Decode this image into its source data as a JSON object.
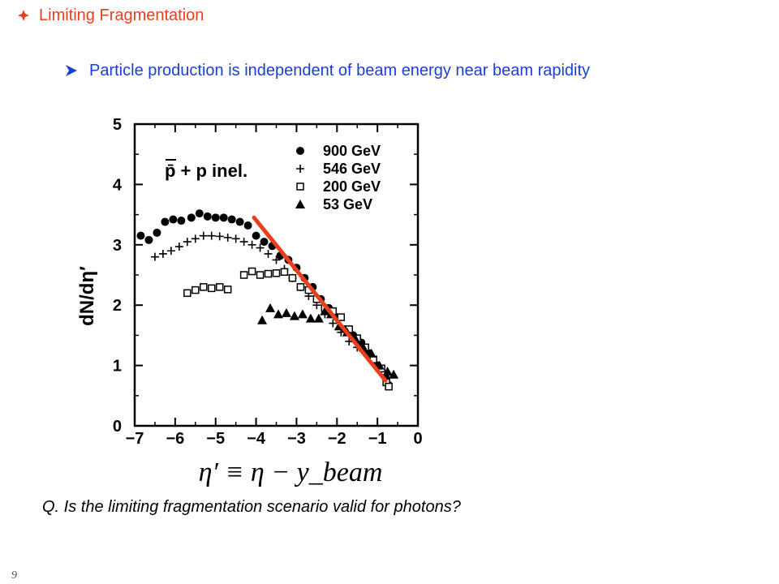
{
  "slide": {
    "title": "Limiting Fragmentation",
    "bullet": "Particle production is independent of beam energy near beam rapidity",
    "question": "Q. Is the limiting fragmentation scenario valid for photons?",
    "page_number": "9",
    "title_color": "#e8401c",
    "bullet_color": "#1a3fd6",
    "bullet_icon": "diamond-icon",
    "sub_bullet_icon": "arrow-icon"
  },
  "chart_data": {
    "type": "scatter",
    "annotation": "p̄ + p inel.",
    "xlabel": "η′ ≡ η − y_beam",
    "ylabel": "dN/dη′",
    "xlim": [
      -7,
      0
    ],
    "ylim": [
      0,
      5
    ],
    "x_ticks": [
      -7,
      -6,
      -5,
      -4,
      -3,
      -2,
      -1,
      0
    ],
    "y_ticks": [
      0,
      1,
      2,
      3,
      4,
      5
    ],
    "legend_position": "top-right",
    "series": [
      {
        "name": "900 GeV",
        "marker": "filled-circle",
        "points": [
          [
            -6.85,
            3.15
          ],
          [
            -6.65,
            3.08
          ],
          [
            -6.45,
            3.2
          ],
          [
            -6.25,
            3.38
          ],
          [
            -6.05,
            3.42
          ],
          [
            -5.85,
            3.4
          ],
          [
            -5.6,
            3.45
          ],
          [
            -5.4,
            3.52
          ],
          [
            -5.2,
            3.47
          ],
          [
            -5.0,
            3.45
          ],
          [
            -4.8,
            3.45
          ],
          [
            -4.6,
            3.42
          ],
          [
            -4.4,
            3.38
          ],
          [
            -4.2,
            3.32
          ],
          [
            -4.0,
            3.15
          ],
          [
            -3.8,
            3.05
          ],
          [
            -3.6,
            2.98
          ],
          [
            -3.4,
            2.82
          ],
          [
            -3.2,
            2.75
          ],
          [
            -3.0,
            2.62
          ],
          [
            -2.8,
            2.45
          ],
          [
            -2.6,
            2.3
          ],
          [
            -2.4,
            2.1
          ],
          [
            -2.2,
            1.95
          ],
          [
            -2.0,
            1.8
          ],
          [
            -1.8,
            1.6
          ],
          [
            -1.6,
            1.5
          ],
          [
            -1.4,
            1.38
          ],
          [
            -1.2,
            1.2
          ],
          [
            -1.0,
            1.0
          ],
          [
            -0.8,
            0.8
          ]
        ]
      },
      {
        "name": "546 GeV",
        "marker": "plus",
        "points": [
          [
            -6.5,
            2.8
          ],
          [
            -6.3,
            2.85
          ],
          [
            -6.1,
            2.9
          ],
          [
            -5.9,
            2.97
          ],
          [
            -5.7,
            3.05
          ],
          [
            -5.5,
            3.1
          ],
          [
            -5.3,
            3.15
          ],
          [
            -5.1,
            3.15
          ],
          [
            -4.9,
            3.14
          ],
          [
            -4.7,
            3.12
          ],
          [
            -4.5,
            3.1
          ],
          [
            -4.3,
            3.05
          ],
          [
            -4.1,
            3.0
          ],
          [
            -3.9,
            2.95
          ],
          [
            -3.7,
            2.85
          ],
          [
            -3.5,
            2.75
          ],
          [
            -3.3,
            2.6
          ],
          [
            -3.1,
            2.45
          ],
          [
            -2.9,
            2.3
          ],
          [
            -2.7,
            2.15
          ],
          [
            -2.5,
            2.0
          ],
          [
            -2.3,
            1.85
          ],
          [
            -2.1,
            1.7
          ],
          [
            -1.9,
            1.55
          ],
          [
            -1.7,
            1.4
          ],
          [
            -1.5,
            1.3
          ],
          [
            -1.3,
            1.22
          ],
          [
            -1.1,
            1.05
          ],
          [
            -0.9,
            0.9
          ],
          [
            -0.75,
            0.72
          ]
        ]
      },
      {
        "name": "200 GeV",
        "marker": "open-square",
        "points": [
          [
            -5.7,
            2.2
          ],
          [
            -5.5,
            2.25
          ],
          [
            -5.3,
            2.3
          ],
          [
            -5.1,
            2.28
          ],
          [
            -4.9,
            2.3
          ],
          [
            -4.7,
            2.26
          ],
          [
            -4.3,
            2.5
          ],
          [
            -4.1,
            2.56
          ],
          [
            -3.9,
            2.5
          ],
          [
            -3.7,
            2.52
          ],
          [
            -3.5,
            2.53
          ],
          [
            -3.3,
            2.55
          ],
          [
            -3.1,
            2.45
          ],
          [
            -2.9,
            2.3
          ],
          [
            -2.7,
            2.25
          ],
          [
            -2.5,
            2.1
          ],
          [
            -2.3,
            1.95
          ],
          [
            -2.1,
            1.9
          ],
          [
            -1.9,
            1.8
          ],
          [
            -1.7,
            1.6
          ],
          [
            -1.5,
            1.45
          ],
          [
            -1.3,
            1.3
          ],
          [
            -1.1,
            1.1
          ],
          [
            -0.9,
            0.95
          ],
          [
            -0.78,
            0.72
          ],
          [
            -0.72,
            0.65
          ]
        ]
      },
      {
        "name": "53 GeV",
        "marker": "filled-triangle",
        "points": [
          [
            -3.85,
            1.75
          ],
          [
            -3.65,
            1.95
          ],
          [
            -3.45,
            1.85
          ],
          [
            -3.25,
            1.87
          ],
          [
            -3.05,
            1.82
          ],
          [
            -2.85,
            1.85
          ],
          [
            -2.65,
            1.78
          ],
          [
            -2.45,
            1.78
          ],
          [
            -2.3,
            1.9
          ],
          [
            -2.15,
            1.85
          ],
          [
            -1.95,
            1.65
          ],
          [
            -1.75,
            1.55
          ],
          [
            -1.55,
            1.45
          ],
          [
            -1.35,
            1.3
          ],
          [
            -1.15,
            1.2
          ],
          [
            -0.95,
            1.0
          ],
          [
            -0.75,
            0.9
          ],
          [
            -0.6,
            0.85
          ]
        ]
      }
    ],
    "fit_line": {
      "color": "#e8401c",
      "points": [
        [
          -4.05,
          3.45
        ],
        [
          -0.8,
          0.75
        ]
      ]
    }
  }
}
